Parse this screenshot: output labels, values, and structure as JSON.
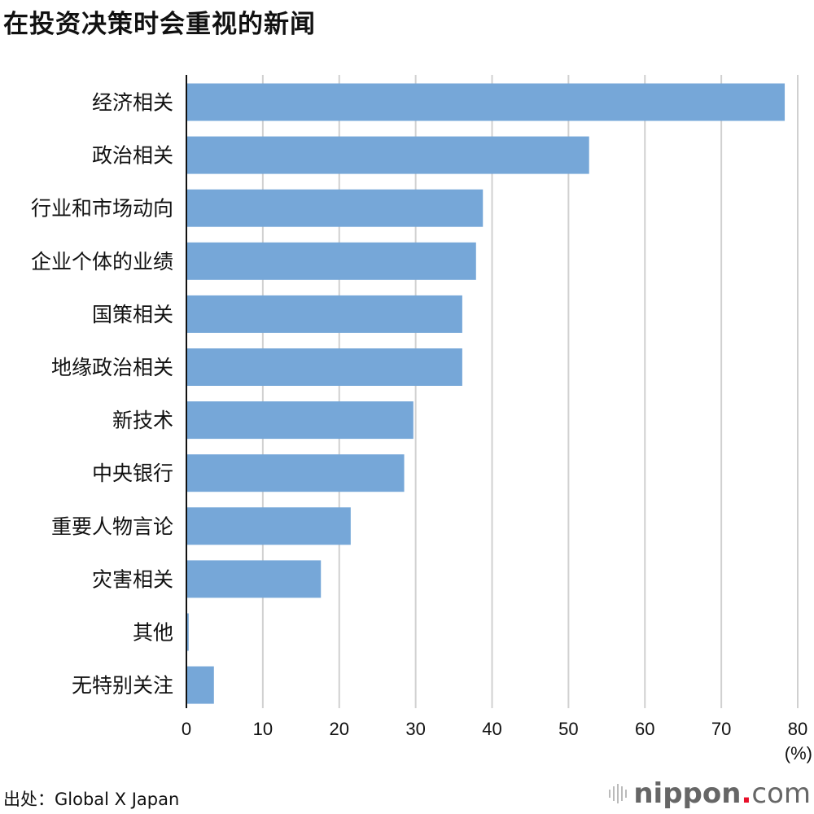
{
  "title": "在投资决策时会重视的新闻",
  "source": "出处：Global X Japan",
  "logo": {
    "name": "nippon",
    "dot": ".",
    "suffix": "com"
  },
  "chart_data": {
    "type": "bar",
    "orientation": "horizontal",
    "title": "在投资决策时会重视的新闻",
    "categories": [
      "经济相关",
      "政治相关",
      "行业和市场动向",
      "企业个体的业绩",
      "国策相关",
      "地缘政治相关",
      "新技术",
      "中央银行",
      "重要人物言论",
      "灾害相关",
      "其他",
      "无特别关注"
    ],
    "values": [
      78.3,
      52.7,
      38.8,
      37.9,
      36.1,
      36.1,
      29.7,
      28.5,
      21.5,
      17.6,
      0.3,
      3.6
    ],
    "xlim": [
      0,
      80
    ],
    "xticks": [
      0,
      10,
      20,
      30,
      40,
      50,
      60,
      70,
      80
    ],
    "xunit": "(%)",
    "grid": true,
    "bar_color": "#76a7d8"
  }
}
